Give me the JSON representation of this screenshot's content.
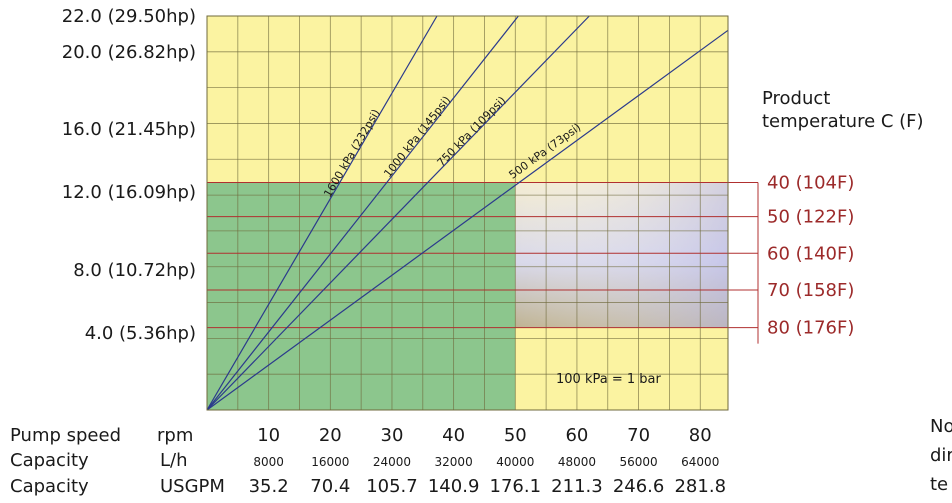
{
  "chart_data": {
    "type": "line",
    "x": [
      0,
      10,
      20,
      30,
      40,
      50,
      60,
      70,
      80
    ],
    "xlim": [
      0,
      84.5
    ],
    "ylim": [
      0,
      22.0
    ],
    "grid": true,
    "y_ticks": [
      {
        "value": 22.0,
        "label": "22.0 (29.50hp)"
      },
      {
        "value": 20.0,
        "label": "20.0 (26.82hp)"
      },
      {
        "value": 16.0,
        "label": "16.0 (21.45hp)"
      },
      {
        "value": 12.0,
        "label": "12.0 (16.09hp)"
      },
      {
        "value": 8.0,
        "label": "8.0 (10.72hp)"
      },
      {
        "value": 4.0,
        "label": "4.0 (5.36hp)"
      }
    ],
    "x_rows": [
      {
        "name": "Pump speed",
        "unit": "rpm",
        "size": "big",
        "values": [
          "10",
          "20",
          "30",
          "40",
          "50",
          "60",
          "70",
          "80"
        ]
      },
      {
        "name": "Capacity",
        "unit": "L/h",
        "size": "small",
        "values": [
          "8000",
          "16000",
          "24000",
          "32000",
          "40000",
          "48000",
          "56000",
          "64000"
        ]
      },
      {
        "name": "Capacity",
        "unit": "USGPM",
        "size": "big",
        "values": [
          "35.2",
          "70.4",
          "105.7",
          "140.9",
          "176.1",
          "211.3",
          "246.6",
          "281.8"
        ]
      }
    ],
    "series": [
      {
        "name": "1600 kPa (232psi)",
        "x": [
          0,
          37.3
        ],
        "y": [
          0,
          22.0
        ]
      },
      {
        "name": "1000 kPa (145psi)",
        "x": [
          0,
          50.5
        ],
        "y": [
          0,
          22.0
        ]
      },
      {
        "name": "750 kPa (109psi)",
        "x": [
          0,
          62.0
        ],
        "y": [
          0,
          22.0
        ]
      },
      {
        "name": "500 kPa (73psi)",
        "x": [
          0,
          84.5
        ],
        "y": [
          0,
          21.2
        ]
      }
    ],
    "temperature_header": [
      "Product",
      "temperature C (F)"
    ],
    "temperature_lines": [
      {
        "label": "40 (104F)",
        "y": 12.7
      },
      {
        "label": "50 (122F)",
        "y": 10.8
      },
      {
        "label": "60 (140F)",
        "y": 8.75
      },
      {
        "label": "70 (158F)",
        "y": 6.7
      },
      {
        "label": "80 (176F)",
        "y": 4.6
      }
    ],
    "green_region": {
      "x": [
        0,
        50
      ],
      "y": [
        0,
        12.7
      ]
    },
    "annotation": "100 kPa = 1 bar",
    "colors": {
      "yellow": "#fbf3a1",
      "green": "#8cc68d",
      "grid": "#6f6a3c",
      "series_line": "#2b3a8c",
      "temperature_line": "#b03030",
      "temperature_label": "#9c2a2a",
      "gradient_top": "#f3ecd2",
      "gradient_mid": "#d6d6ea",
      "gradient_bottom": "#c0b495"
    }
  },
  "note_fragment": [
    "No",
    "dir",
    "te"
  ]
}
